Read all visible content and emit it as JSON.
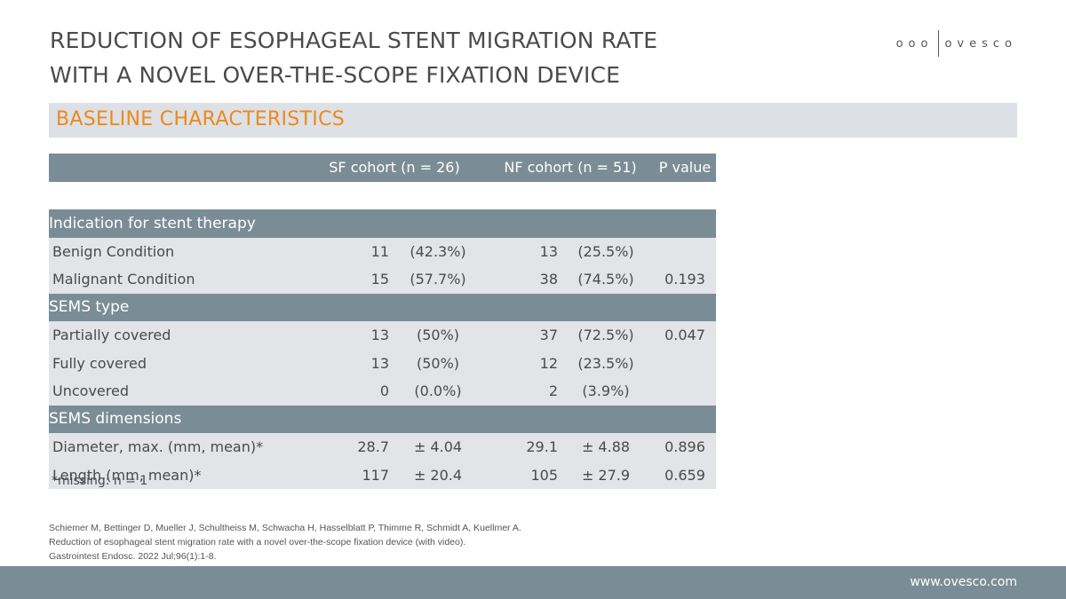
{
  "title": {
    "line1": "REDUCTION OF ESOPHAGEAL STENT MIGRATION RATE",
    "line2": "WITH A NOVEL OVER-THE-SCOPE FIXATION DEVICE"
  },
  "logo": {
    "dots": "ooo",
    "word": "ovesco"
  },
  "section": {
    "title": "BASELINE CHARACTERISTICS"
  },
  "table": {
    "headers": {
      "label": "",
      "sf": "SF cohort (n = 26)",
      "nf": "NF cohort (n = 51)",
      "p": "P  value"
    },
    "groups": [
      {
        "title": "Indication for stent therapy",
        "rows": [
          {
            "label": "Benign Condition",
            "sf_n": "11",
            "sf_pct": "(42.3%)",
            "nf_n": "13",
            "nf_pct": "(25.5%)",
            "p": ""
          },
          {
            "label": "Malignant Condition",
            "sf_n": "15",
            "sf_pct": "(57.7%)",
            "nf_n": "38",
            "nf_pct": "(74.5%)",
            "p": "0.193"
          }
        ]
      },
      {
        "title": "SEMS type",
        "rows": [
          {
            "label": "Partially covered",
            "sf_n": "13",
            "sf_pct": "(50%)",
            "nf_n": "37",
            "nf_pct": "(72.5%)",
            "p": "0.047"
          },
          {
            "label": "Fully covered",
            "sf_n": "13",
            "sf_pct": "(50%)",
            "nf_n": "12",
            "nf_pct": "(23.5%)",
            "p": ""
          },
          {
            "label": "Uncovered",
            "sf_n": "0",
            "sf_pct": "(0.0%)",
            "nf_n": "2",
            "nf_pct": "(3.9%)",
            "p": ""
          }
        ]
      },
      {
        "title": "SEMS dimensions",
        "rows": [
          {
            "label": "Diameter, max. (mm, mean)*",
            "sf_n": "28.7",
            "sf_pct": "± 4.04",
            "nf_n": "29.1",
            "nf_pct": "± 4.88",
            "p": "0.896"
          },
          {
            "label": "Length (mm, mean)*",
            "sf_n": "117",
            "sf_pct": "± 20.4",
            "nf_n": "105",
            "nf_pct": "± 27.9",
            "p": "0.659"
          }
        ]
      }
    ]
  },
  "footnote": "*missing: n = 1",
  "citation": {
    "line1": "Schiemer M, Bettinger D, Mueller J, Schultheiss M, Schwacha H, Hasselblatt P, Thimme R, Schmidt A, Kuellmer A.",
    "line2": "Reduction of esophageal stent migration rate with a novel over-the-scope fixation device (with video).",
    "line3": "Gastrointest Endosc. 2022 Jul;96(1):1-8."
  },
  "footer": {
    "url": "www.ovesco.com"
  },
  "colors": {
    "accent": "#ec8a1a",
    "header_bg": "#7a8d97",
    "row_bg": "#e2e4e8",
    "banner_bg": "#dde0e5"
  }
}
